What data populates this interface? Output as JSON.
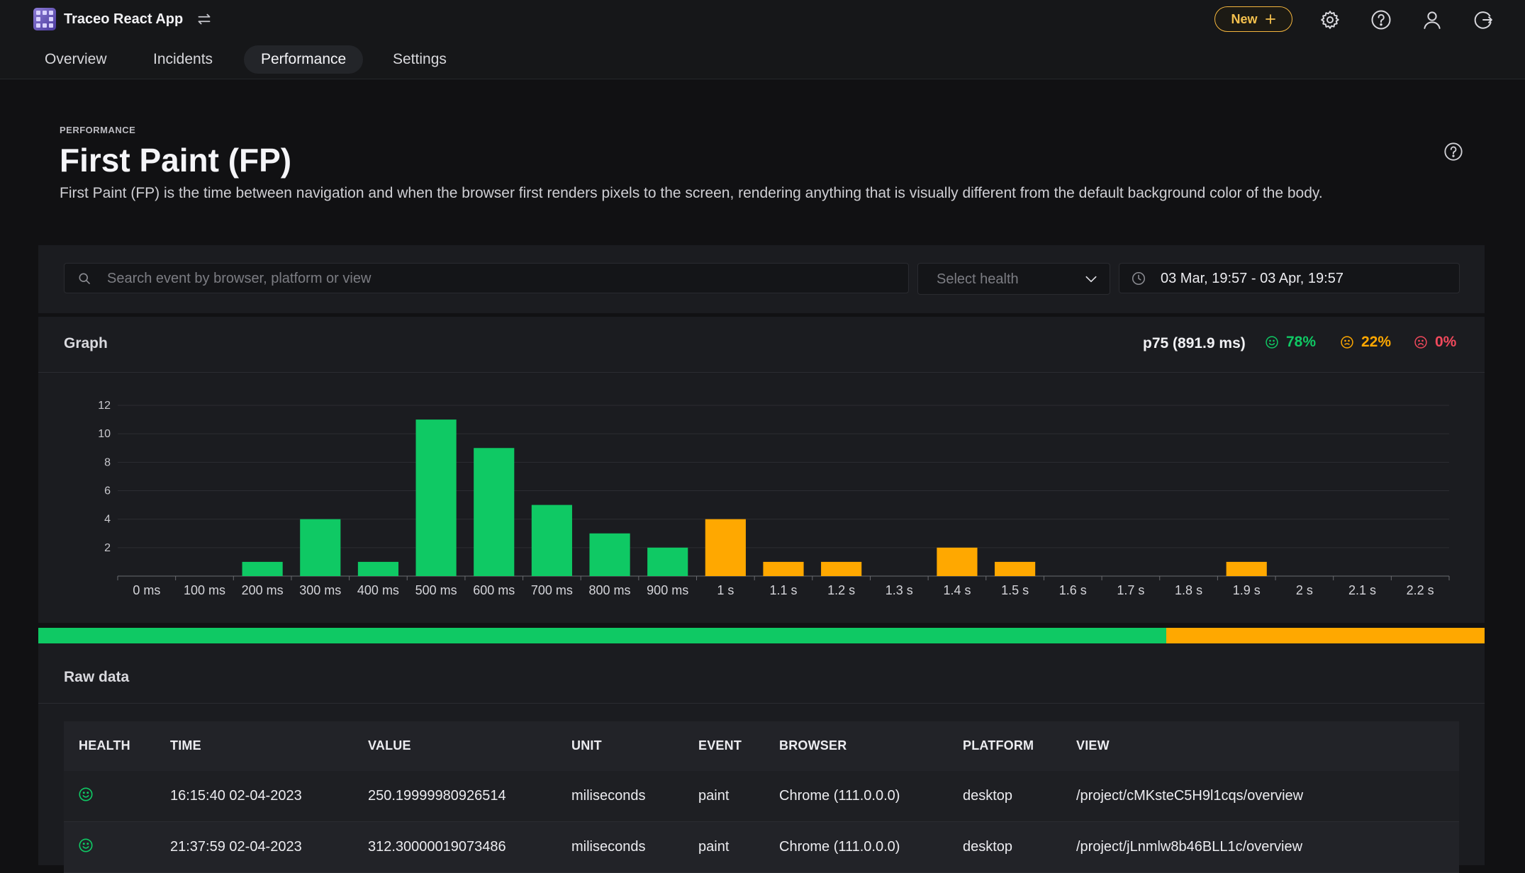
{
  "app": {
    "name": "Traceo React App"
  },
  "header_actions": {
    "new_label": "New",
    "icons": [
      "settings-icon",
      "help-icon",
      "user-icon",
      "logout-icon"
    ]
  },
  "tabs": [
    {
      "label": "Overview",
      "active": false
    },
    {
      "label": "Incidents",
      "active": false
    },
    {
      "label": "Performance",
      "active": true
    },
    {
      "label": "Settings",
      "active": false
    }
  ],
  "page": {
    "eyebrow": "PERFORMANCE",
    "title": "First Paint (FP)",
    "description": "First Paint (FP) is the time between navigation and when the browser first renders pixels to the screen, rendering anything that is visually different from the default background color of the body."
  },
  "filters": {
    "search_placeholder": "Search event by browser, platform or view",
    "health_placeholder": "Select health",
    "date_range": "03 Mar, 19:57 - 03 Apr, 19:57"
  },
  "graph": {
    "title": "Graph",
    "p75": "p75 (891.9 ms)",
    "good_pct": "78%",
    "needs_improvement_pct": "22%",
    "poor_pct": "0%",
    "colors": {
      "good": "#0fc964",
      "needs_improvement": "#ffa800",
      "poor": "#f2495c"
    }
  },
  "chart_data": {
    "type": "bar",
    "categories": [
      "0 ms",
      "100 ms",
      "200 ms",
      "300 ms",
      "400 ms",
      "500 ms",
      "600 ms",
      "700 ms",
      "800 ms",
      "900 ms",
      "1 s",
      "1.1 s",
      "1.2 s",
      "1.3 s",
      "1.4 s",
      "1.5 s",
      "1.6 s",
      "1.7 s",
      "1.8 s",
      "1.9 s",
      "2 s",
      "2.1 s",
      "2.2 s"
    ],
    "values": [
      0,
      0,
      1,
      4,
      1,
      11,
      9,
      5,
      3,
      2,
      4,
      1,
      1,
      0,
      2,
      1,
      0,
      0,
      0,
      1,
      0,
      0,
      0
    ],
    "bar_status": [
      "good",
      "good",
      "good",
      "good",
      "good",
      "good",
      "good",
      "good",
      "good",
      "good",
      "needs_improvement",
      "needs_improvement",
      "needs_improvement",
      "needs_improvement",
      "needs_improvement",
      "needs_improvement",
      "needs_improvement",
      "needs_improvement",
      "needs_improvement",
      "needs_improvement",
      "needs_improvement",
      "needs_improvement",
      "needs_improvement"
    ],
    "yticks": [
      2,
      4,
      6,
      8,
      10,
      12
    ],
    "ylim": [
      0,
      12
    ],
    "grid": true,
    "legend": "none"
  },
  "distribution": {
    "good_fraction": 0.78,
    "needs_improvement_fraction": 0.22,
    "poor_fraction": 0
  },
  "raw_data": {
    "title": "Raw data",
    "columns": [
      "HEALTH",
      "TIME",
      "VALUE",
      "UNIT",
      "EVENT",
      "BROWSER",
      "PLATFORM",
      "VIEW"
    ],
    "rows": [
      {
        "health": "good",
        "time": "16:15:40 02-04-2023",
        "value": "250.19999980926514",
        "unit": "miliseconds",
        "event": "paint",
        "browser": "Chrome (111.0.0.0)",
        "platform": "desktop",
        "view": "/project/cMKsteC5H9l1cqs/overview"
      },
      {
        "health": "good",
        "time": "21:37:59 02-04-2023",
        "value": "312.30000019073486",
        "unit": "miliseconds",
        "event": "paint",
        "browser": "Chrome (111.0.0.0)",
        "platform": "desktop",
        "view": "/project/jLnmlw8b46BLL1c/overview"
      }
    ]
  }
}
